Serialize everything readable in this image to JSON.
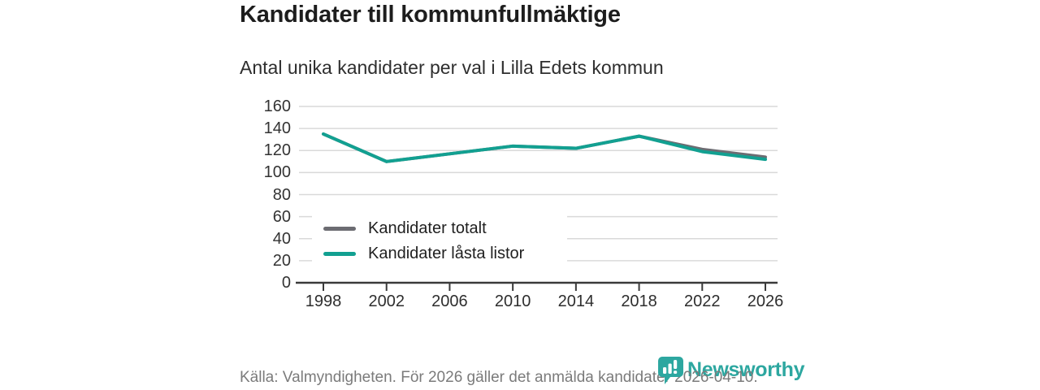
{
  "header": {
    "title": "Kandidater till kommunfullmäktige",
    "subtitle": "Antal unika kandidater per val i Lilla Edets kommun"
  },
  "chart_data": {
    "type": "line",
    "x": [
      1998,
      2002,
      2006,
      2010,
      2014,
      2018,
      2022,
      2026
    ],
    "series": [
      {
        "name": "Kandidater totalt",
        "color": "#6c6c72",
        "values": [
          135,
          110,
          117,
          124,
          122,
          133,
          121,
          114
        ]
      },
      {
        "name": "Kandidater låsta listor",
        "color": "#12a091",
        "values": [
          135,
          110,
          117,
          124,
          122,
          133,
          119,
          112
        ]
      }
    ],
    "title": "Kandidater till kommunfullmäktige",
    "subtitle": "Antal unika kandidater per val i Lilla Edets kommun",
    "xlabel": "",
    "ylabel": "",
    "ylim": [
      0,
      160
    ],
    "ytick_step": 20,
    "grid": true,
    "legend_position": "inside-middle-left"
  },
  "footer": {
    "source": "Källa: Valmyndigheten. För 2026 gäller det anmälda kandidater 2026-04-10.",
    "brand": "Newsworthy"
  },
  "colors": {
    "accent_teal": "#12a091",
    "series_gray": "#6c6c72",
    "brand_teal": "#2da7a0",
    "grid": "#d9d9d9",
    "axis": "#3a3a3a",
    "text_dark": "#1d1d1d",
    "text_muted": "#7b7b7b"
  }
}
